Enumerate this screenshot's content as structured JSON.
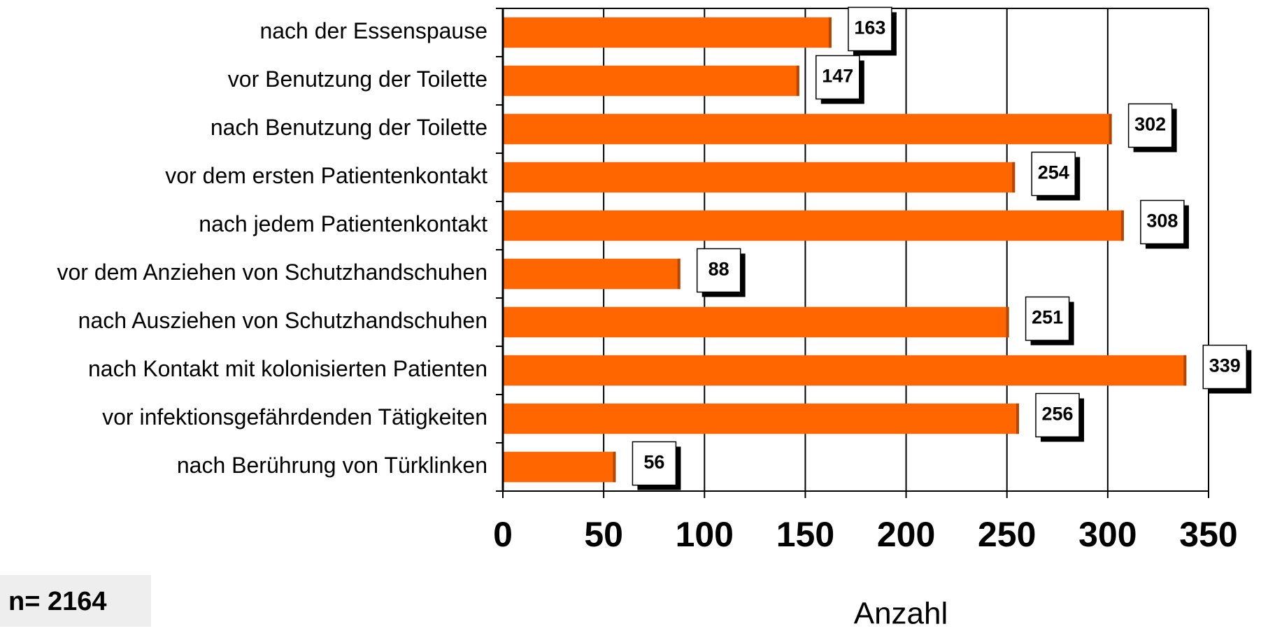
{
  "chart_data": {
    "type": "bar",
    "orientation": "horizontal",
    "categories": [
      "nach der Essenspause",
      "vor Benutzung der Toilette",
      "nach Benutzung der Toilette",
      "vor dem ersten Patientenkontakt",
      "nach jedem Patientenkontakt",
      "vor dem Anziehen von Schutzhandschuhen",
      "nach Ausziehen von Schutzhandschuhen",
      "nach Kontakt mit kolonisierten Patienten",
      "vor infektionsgefährdenden Tätigkeiten",
      "nach Berührung von Türklinken"
    ],
    "values": [
      163,
      147,
      302,
      254,
      308,
      88,
      251,
      339,
      256,
      56
    ],
    "color": "#ff6600",
    "xlim": [
      0,
      350
    ],
    "xticks": [
      0,
      50,
      100,
      150,
      200,
      250,
      300,
      350
    ],
    "grid": true,
    "x_label": "Anzahl",
    "annotation": "n= 2164"
  }
}
